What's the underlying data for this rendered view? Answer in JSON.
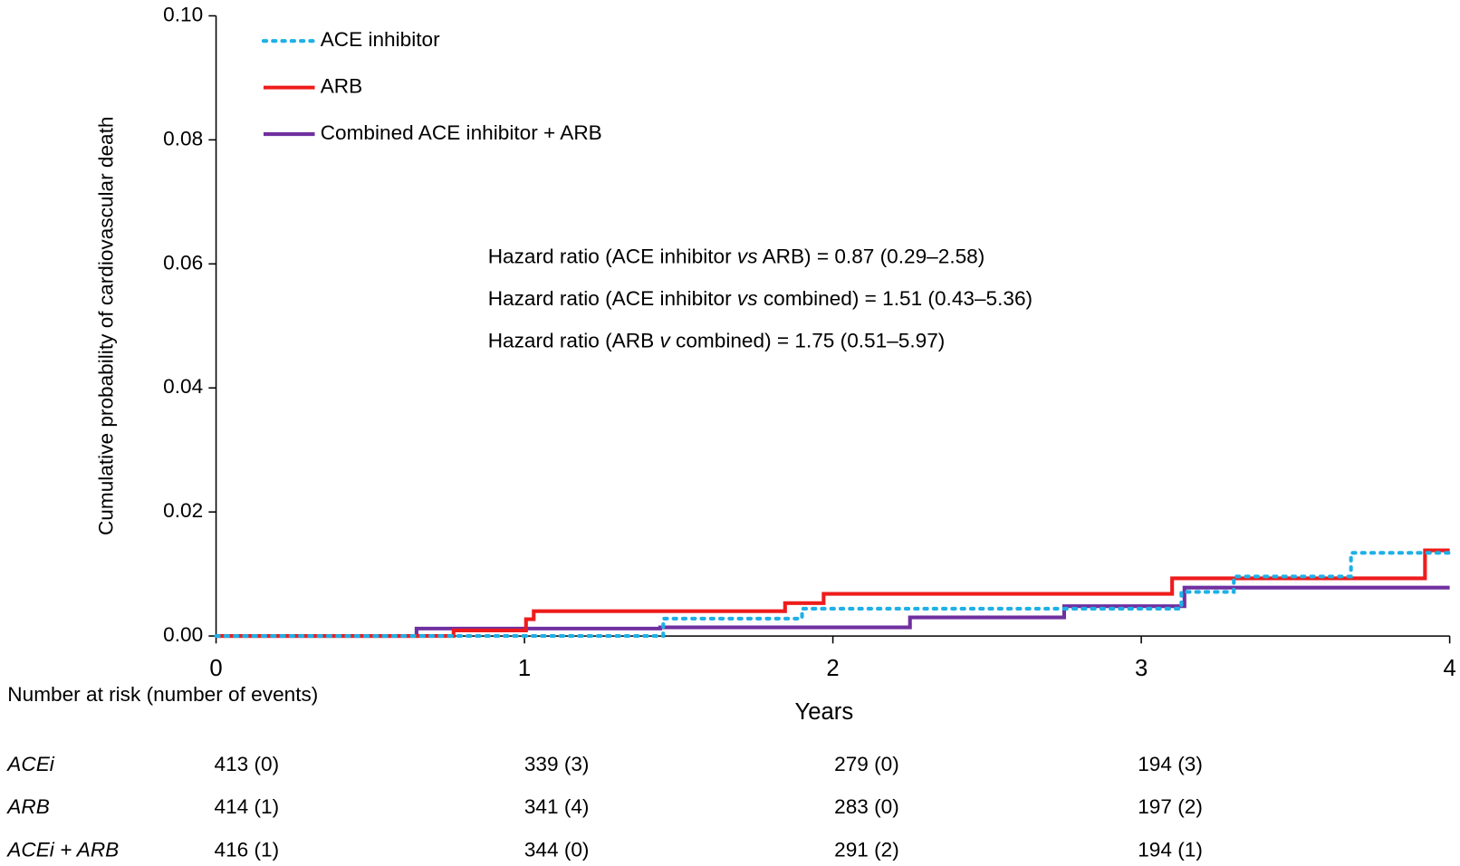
{
  "chart_data": {
    "type": "line",
    "drawstyle": "steps-post",
    "ylabel": "Cumulative probability of cardiovascular death",
    "xlabel": "Years",
    "xlim": [
      0,
      4
    ],
    "xticks": [
      0,
      1,
      2,
      3,
      4
    ],
    "ylim": [
      0,
      0.1
    ],
    "yticks": [
      {
        "value": 0,
        "label": "0.00"
      },
      {
        "value": 0.02,
        "label": "0.02"
      },
      {
        "value": 0.04,
        "label": "0.04"
      },
      {
        "value": 0.06,
        "label": "0.06"
      },
      {
        "value": 0.08,
        "label": "0.08"
      },
      {
        "value": 0.1,
        "label": "0.10"
      }
    ],
    "legend": "upper left",
    "series": [
      {
        "name": "ACE inhibitor",
        "color": "#1fb0e6",
        "dash": "dotted",
        "x": [
          0,
          1.45,
          1.9,
          3.13,
          3.3,
          3.68,
          4
        ],
        "values": [
          0,
          0.0028,
          0.0044,
          0.0071,
          0.0096,
          0.0134,
          0.0134
        ]
      },
      {
        "name": "ARB",
        "color": "#ee1c1c",
        "dash": "solid",
        "x": [
          0,
          0.77,
          1.005,
          1.03,
          1.845,
          1.97,
          3.1,
          3.92,
          4
        ],
        "values": [
          0,
          0.0009,
          0.0027,
          0.004,
          0.0053,
          0.0068,
          0.0093,
          0.0138,
          0.0138
        ]
      },
      {
        "name": "Combined ACE inhibitor + ARB",
        "color": "#7030a0",
        "dash": "solid",
        "x": [
          0,
          0.65,
          1.44,
          2.25,
          2.75,
          3.14,
          4
        ],
        "values": [
          0,
          0.0012,
          0.0014,
          0.003,
          0.0048,
          0.0078,
          0.0078
        ]
      }
    ],
    "annotations": [
      [
        {
          "text": "Hazard ratio (ACE inhibitor ",
          "italic": false
        },
        {
          "text": "vs",
          "italic": true
        },
        {
          "text": " ARB) = 0.87 (0.29–2.58)",
          "italic": false
        }
      ],
      [
        {
          "text": "Hazard ratio (ACE inhibitor ",
          "italic": false
        },
        {
          "text": "vs",
          "italic": true
        },
        {
          "text": " combined) = 1.51 (0.43–5.36)",
          "italic": false
        }
      ],
      [
        {
          "text": "Hazard ratio (ARB ",
          "italic": false
        },
        {
          "text": "v",
          "italic": true
        },
        {
          "text": " combined) = 1.75 (0.51–5.97)",
          "italic": false
        }
      ]
    ],
    "risk_table": {
      "title": "Number at risk (number of events)",
      "rows": [
        {
          "label": "ACEi",
          "cells": [
            "413 (0)",
            "339 (3)",
            "279 (0)",
            "194 (3)"
          ]
        },
        {
          "label": "ARB",
          "cells": [
            "414 (1)",
            "341 (4)",
            "283 (0)",
            "197 (2)"
          ]
        },
        {
          "label": "ACEi + ARB",
          "cells": [
            "416 (1)",
            "344 (0)",
            "291 (2)",
            "194 (1)"
          ]
        }
      ]
    }
  }
}
